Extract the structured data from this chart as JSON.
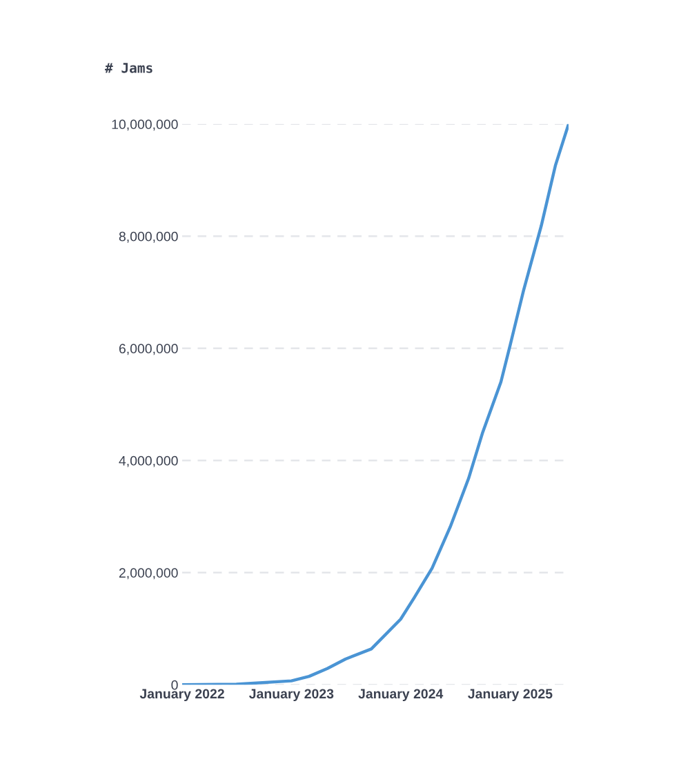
{
  "chart_data": {
    "type": "line",
    "title": "# Jams",
    "x": [
      "2022-01",
      "2022-07",
      "2023-01",
      "2023-03",
      "2023-05",
      "2023-07",
      "2023-09-25",
      "2024-01",
      "2024-02-15",
      "2024-04-15",
      "2024-06-15",
      "2024-08-15",
      "2024-10",
      "2024-12",
      "2025-01",
      "2025-02-15",
      "2025-04-15",
      "2025-06",
      "2025-07-15"
    ],
    "series": [
      {
        "color": "#4a94d4",
        "values": [
          0,
          10000,
          70000,
          150000,
          290000,
          460000,
          640000,
          1170000,
          1550000,
          2080000,
          2820000,
          3680000,
          4500000,
          5400000,
          6060000,
          7040000,
          8190000,
          9260000,
          10000000
        ]
      }
    ],
    "xlim": [
      "2022-01",
      "2025-07-15"
    ],
    "xticks": [
      {
        "value": "2022-01",
        "label": "January 2022"
      },
      {
        "value": "2023-01",
        "label": "January 2023"
      },
      {
        "value": "2024-01",
        "label": "January 2024"
      },
      {
        "value": "2025-01",
        "label": "January 2025"
      }
    ],
    "ylim": [
      0,
      10000000
    ],
    "yticks": [
      {
        "value": 0,
        "label": "0"
      },
      {
        "value": 2000000,
        "label": "2,000,000"
      },
      {
        "value": 4000000,
        "label": "4,000,000"
      },
      {
        "value": 6000000,
        "label": "6,000,000"
      },
      {
        "value": 8000000,
        "label": "8,000,000"
      },
      {
        "value": 10000000,
        "label": "10,000,000"
      }
    ],
    "grid": "y",
    "line_style": "solid"
  }
}
